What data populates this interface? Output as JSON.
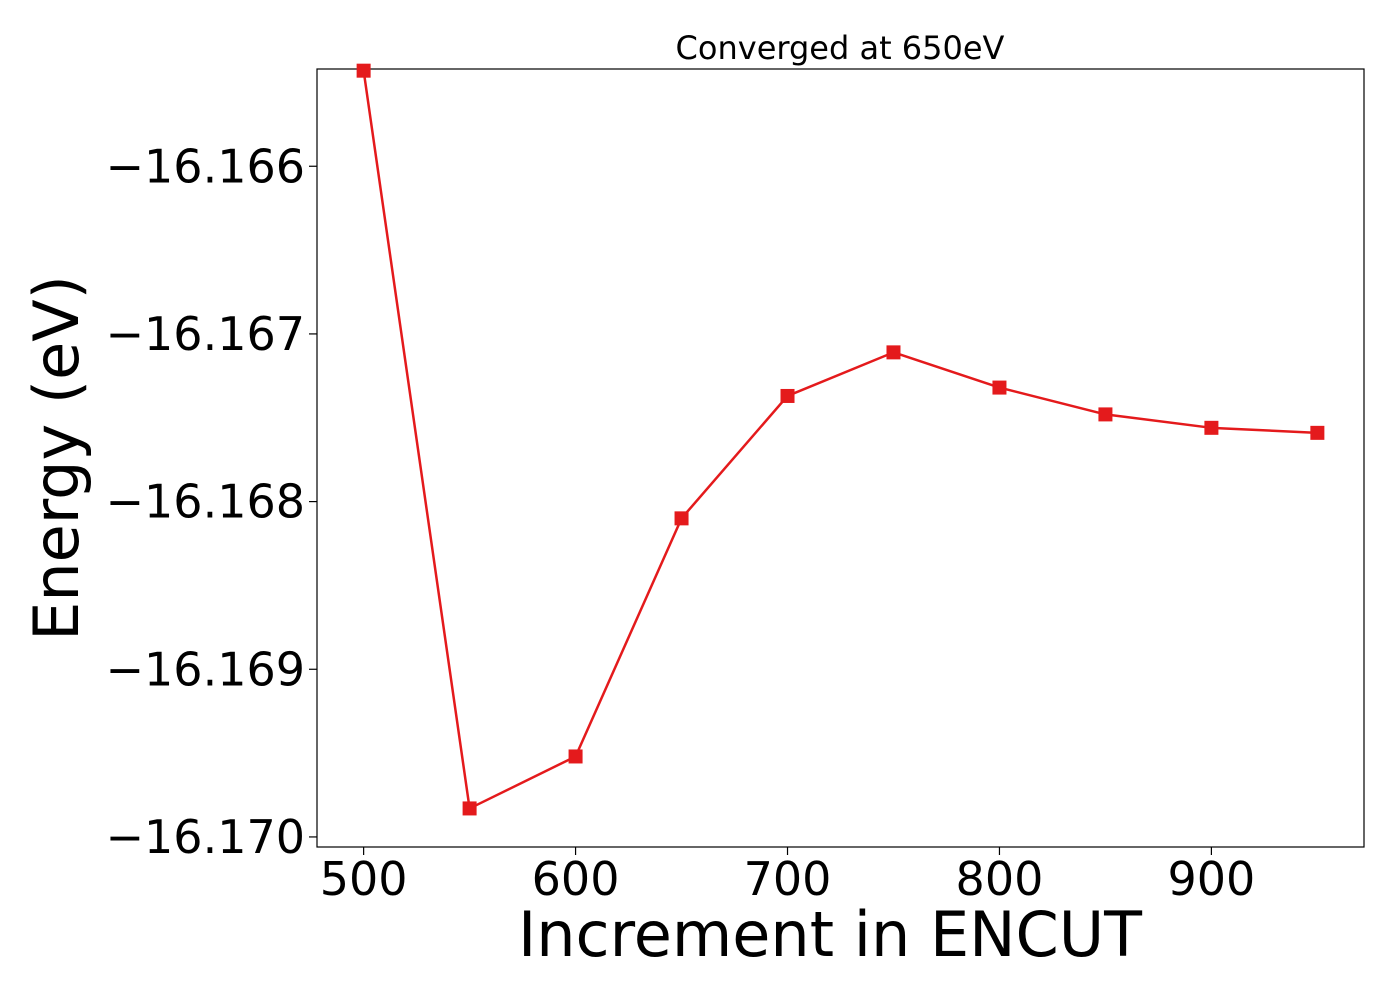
{
  "chart_data": {
    "type": "line",
    "title": "Converged at 650eV",
    "xlabel": "Increment in ENCUT",
    "ylabel": "Energy (eV)",
    "xlim": [
      478,
      972
    ],
    "ylim": [
      -16.17006,
      -16.16542
    ],
    "grid": false,
    "legend": "none",
    "x_ticks": [
      500,
      600,
      700,
      800,
      900
    ],
    "x_tick_labels": [
      "500",
      "600",
      "700",
      "800",
      "900"
    ],
    "y_ticks": [
      -16.166,
      -16.167,
      -16.168,
      -16.169,
      -16.17
    ],
    "y_tick_labels": [
      "−16.166",
      "−16.167",
      "−16.168",
      "−16.169",
      "−16.170"
    ],
    "marker": "square",
    "series": [
      {
        "color": "#e41a1c",
        "x": [
          500,
          550,
          600,
          650,
          700,
          750,
          800,
          850,
          900,
          950
        ],
        "y": [
          -16.16543,
          -16.16983,
          -16.16952,
          -16.1681,
          -16.16737,
          -16.16711,
          -16.16732,
          -16.16748,
          -16.16756,
          -16.16759
        ]
      }
    ]
  }
}
